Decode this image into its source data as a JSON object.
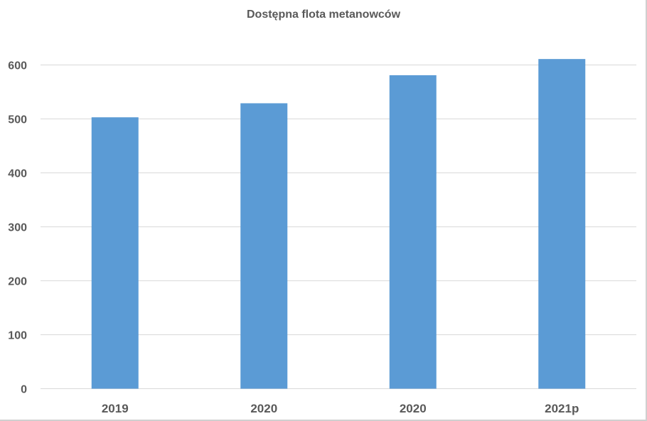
{
  "chart_data": {
    "type": "bar",
    "title": "Dostępna flota metanowców",
    "xlabel": "",
    "ylabel": "",
    "categories": [
      "2019",
      "2020",
      "2020",
      "2021p"
    ],
    "values": [
      503,
      529,
      581,
      611
    ],
    "ylim": [
      0,
      650
    ],
    "yticks": [
      0,
      100,
      200,
      300,
      400,
      500,
      600
    ],
    "grid": true,
    "legend": "none",
    "bar_color": "#5b9bd5",
    "grid_color": "#d9d9d9",
    "text_color": "#595959"
  }
}
